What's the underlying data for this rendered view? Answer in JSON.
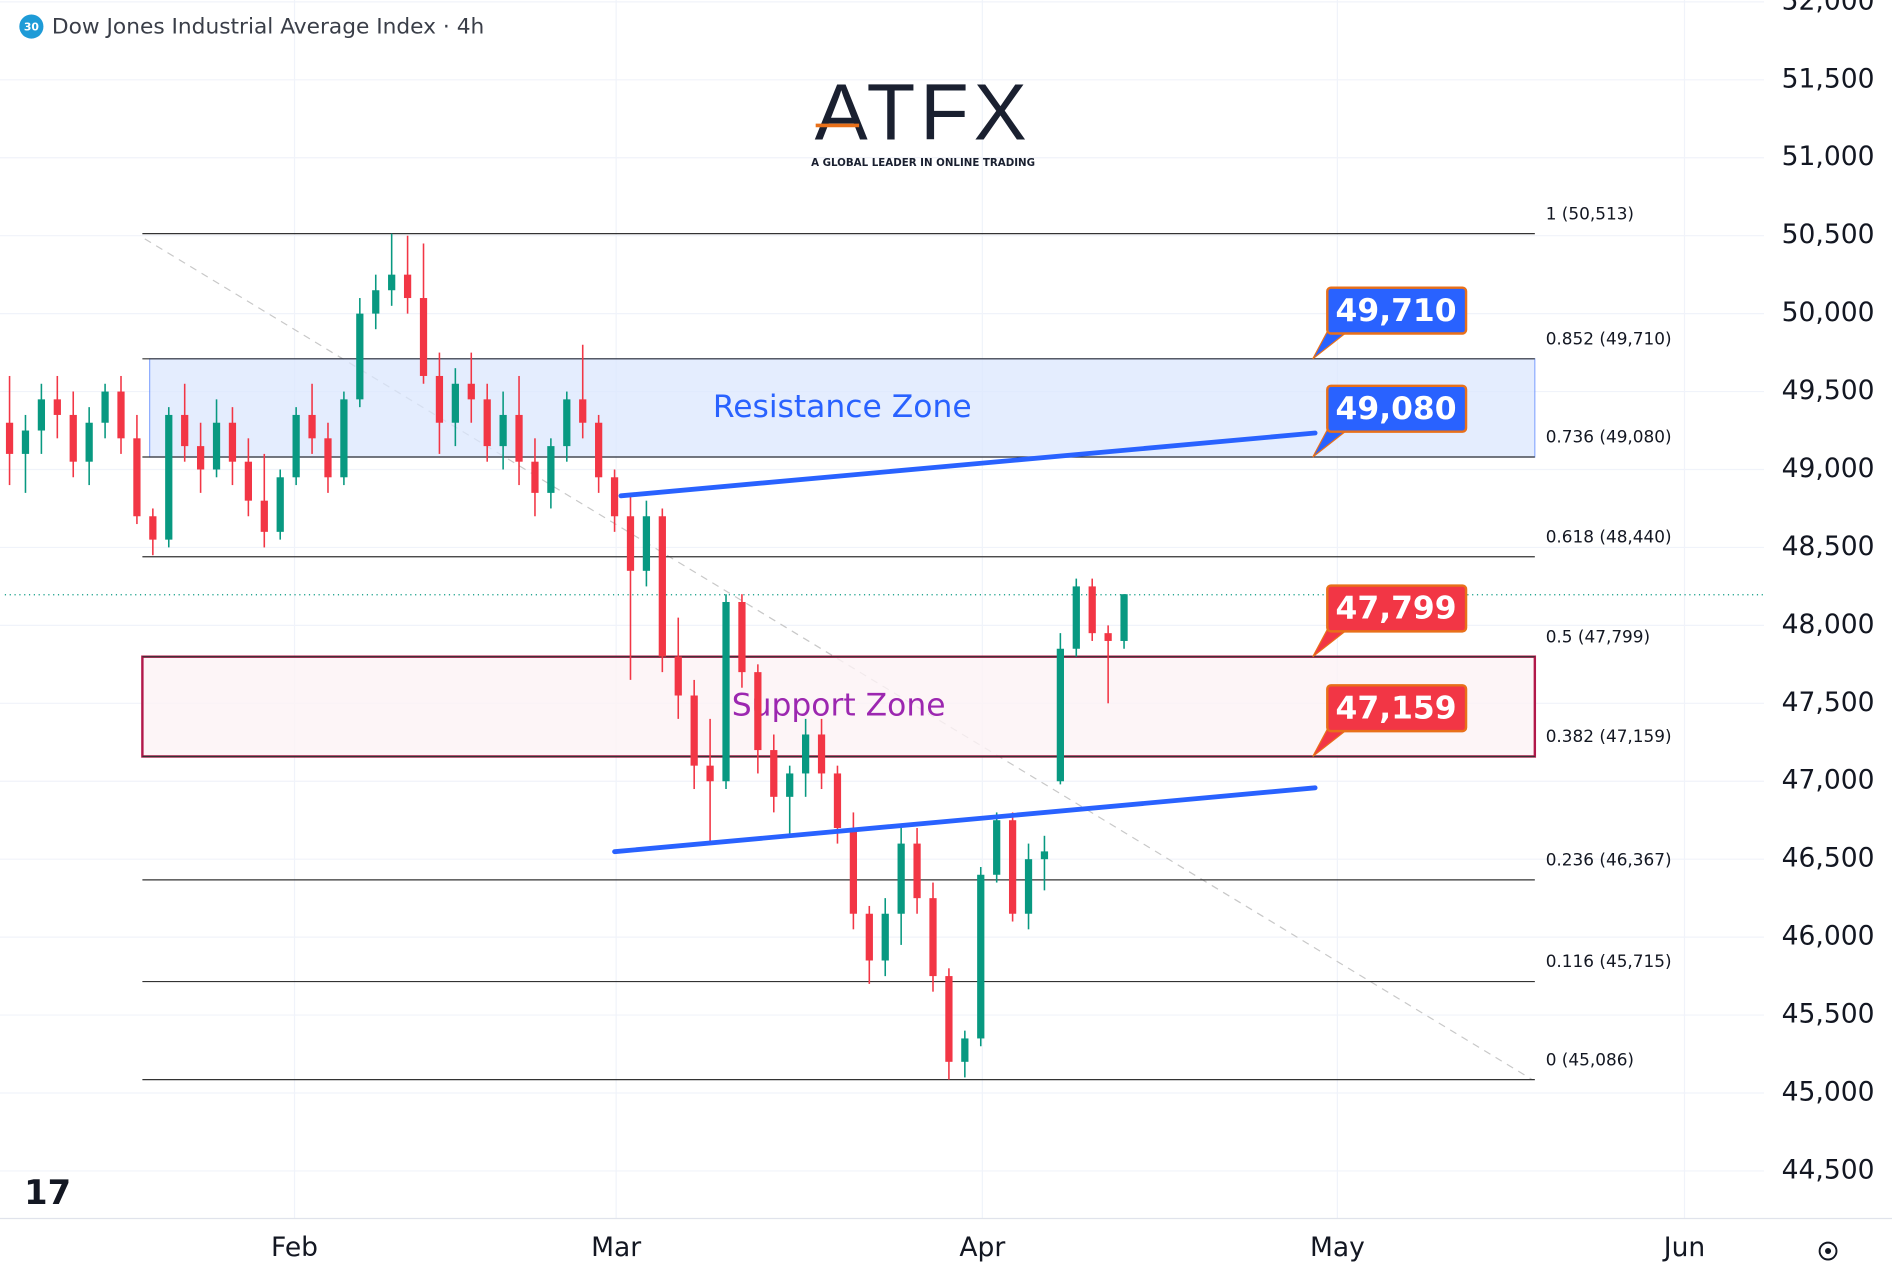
{
  "chart_data": {
    "type": "candlestick",
    "title": "Dow Jones Industrial Average Index · 4h",
    "badge": "30",
    "logo": {
      "name": "ATFX",
      "tagline": "A GLOBAL LEADER IN ONLINE TRADING"
    },
    "x": [
      0,
      1,
      2,
      3,
      4,
      5,
      6,
      7,
      8,
      9,
      10,
      11,
      12,
      13,
      14,
      15,
      16,
      17,
      18,
      19,
      20,
      21,
      22,
      23,
      24,
      25,
      26,
      27,
      28,
      29,
      30,
      31,
      32,
      33,
      34,
      35,
      36,
      37,
      38,
      39,
      40,
      41,
      42,
      43,
      44,
      45,
      46,
      47,
      48,
      49,
      50,
      51,
      52,
      53,
      54,
      55,
      56,
      57,
      58,
      59,
      60,
      61,
      62,
      63,
      64,
      65,
      66,
      67,
      68,
      69,
      70
    ],
    "open": [
      49300,
      49100,
      49250,
      49450,
      49350,
      49050,
      49300,
      49500,
      49200,
      48700,
      48550,
      49350,
      49150,
      49000,
      49300,
      49050,
      48800,
      48600,
      48950,
      49350,
      49200,
      48950,
      49450,
      50000,
      50150,
      50250,
      50100,
      49600,
      49300,
      49550,
      49450,
      49150,
      49350,
      49050,
      48850,
      49150,
      49450,
      49300,
      48950,
      48700,
      48350,
      48700,
      47800,
      47550,
      47100,
      47000,
      48150,
      47700,
      47200,
      46900,
      47050,
      47300,
      47050,
      46700,
      46150,
      45850,
      46150,
      46600,
      46250,
      45750,
      45200,
      45350,
      46400,
      46750,
      46150,
      46500,
      47000,
      47850,
      48250,
      47950,
      47900
    ],
    "high": [
      49600,
      49350,
      49550,
      49600,
      49500,
      49400,
      49550,
      49600,
      49350,
      48750,
      49400,
      49550,
      49300,
      49450,
      49400,
      49200,
      49100,
      49000,
      49400,
      49550,
      49300,
      49500,
      50100,
      50250,
      50513,
      50500,
      50450,
      49750,
      49650,
      49750,
      49550,
      49500,
      49600,
      49200,
      49200,
      49500,
      49800,
      49350,
      49000,
      48850,
      48800,
      48750,
      48050,
      47650,
      47400,
      48200,
      48200,
      47750,
      47300,
      47100,
      47400,
      47400,
      47100,
      46800,
      46200,
      46250,
      46700,
      46700,
      46350,
      45800,
      45400,
      46450,
      46800,
      46800,
      46600,
      46650,
      47950,
      48300,
      48300,
      48000,
      48200
    ],
    "low": [
      48900,
      48850,
      49100,
      49200,
      48950,
      48900,
      49200,
      49100,
      48650,
      48450,
      48500,
      49050,
      48850,
      48950,
      48900,
      48700,
      48500,
      48550,
      48900,
      49100,
      48850,
      48900,
      49400,
      49900,
      50050,
      50000,
      49550,
      49100,
      49150,
      49300,
      49050,
      49000,
      48900,
      48700,
      48750,
      49050,
      49200,
      48850,
      48600,
      47650,
      48250,
      47700,
      47400,
      46950,
      46600,
      46950,
      47600,
      47050,
      46800,
      46650,
      46900,
      46950,
      46600,
      46050,
      45700,
      45750,
      45950,
      46150,
      45650,
      45086,
      45100,
      45300,
      46350,
      46100,
      46050,
      46300,
      46980,
      47800,
      47900,
      47500,
      47850
    ],
    "close": [
      49100,
      49250,
      49450,
      49350,
      49050,
      49300,
      49500,
      49200,
      48700,
      48550,
      49350,
      49150,
      49000,
      49300,
      49050,
      48800,
      48600,
      48950,
      49350,
      49200,
      48950,
      49450,
      50000,
      50150,
      50250,
      50100,
      49600,
      49300,
      49550,
      49450,
      49150,
      49350,
      49050,
      48850,
      49150,
      49450,
      49300,
      48950,
      48700,
      48350,
      48700,
      47800,
      47550,
      47100,
      47000,
      48150,
      47700,
      47200,
      46900,
      47050,
      47300,
      47050,
      46700,
      46150,
      45850,
      46150,
      46600,
      46250,
      45750,
      45200,
      45350,
      46400,
      46750,
      46150,
      46500,
      46550,
      47850,
      48250,
      47950,
      47900,
      48200
    ],
    "up_color": "#089981",
    "down_color": "#f23645",
    "xlim": [
      -0.6,
      110.2
    ],
    "xticks": [
      {
        "value": 17.9,
        "label": "Feb"
      },
      {
        "value": 38.1,
        "label": "Mar"
      },
      {
        "value": 61.1,
        "label": "Apr"
      },
      {
        "value": 83.4,
        "label": "May"
      },
      {
        "value": 105.2,
        "label": "Jun"
      }
    ],
    "ylim": [
      44195,
      52012
    ],
    "yticks": [
      {
        "value": 44500,
        "label": "44,500"
      },
      {
        "value": 45000,
        "label": "45,000"
      },
      {
        "value": 45500,
        "label": "45,500"
      },
      {
        "value": 46000,
        "label": "46,000"
      },
      {
        "value": 46500,
        "label": "46,500"
      },
      {
        "value": 47000,
        "label": "47,000"
      },
      {
        "value": 47500,
        "label": "47,500"
      },
      {
        "value": 48000,
        "label": "48,000"
      },
      {
        "value": 48500,
        "label": "48,500"
      },
      {
        "value": 49000,
        "label": "49,000"
      },
      {
        "value": 49500,
        "label": "49,500"
      },
      {
        "value": 50000,
        "label": "50,000"
      },
      {
        "value": 50500,
        "label": "50,500"
      },
      {
        "value": 51000,
        "label": "51,000"
      },
      {
        "value": 51500,
        "label": "51,500"
      },
      {
        "value": 52000,
        "label": "52,000"
      }
    ],
    "grid": true,
    "fib_levels": [
      {
        "value": 50513,
        "label": "1 (50,513)"
      },
      {
        "value": 49710,
        "label": "0.852 (49,710)"
      },
      {
        "value": 49080,
        "label": "0.736 (49,080)"
      },
      {
        "value": 48440,
        "label": "0.618 (48,440)"
      },
      {
        "value": 47799,
        "label": "0.5 (47,799)"
      },
      {
        "value": 47159,
        "label": "0.382 (47,159)"
      },
      {
        "value": 46367,
        "label": "0.236 (46,367)"
      },
      {
        "value": 45715,
        "label": "0.116 (45,715)"
      },
      {
        "value": 45086,
        "label": "0 (45,086)"
      }
    ],
    "zones": [
      {
        "name": "Resistance Zone",
        "low": 49080,
        "high": 49710,
        "color": "#2962ff"
      },
      {
        "name": "Support Zone",
        "low": 47159,
        "high": 47799,
        "color": "#b2184a"
      }
    ],
    "callouts": [
      {
        "value": 49710,
        "label": "49,710",
        "color": "#2962ff"
      },
      {
        "value": 49080,
        "label": "49,080",
        "color": "#2962ff"
      },
      {
        "value": 47799,
        "label": "47,799",
        "color": "#f23645"
      },
      {
        "value": 47159,
        "label": "47,159",
        "color": "#f23645"
      }
    ],
    "trendlines": [
      {
        "x": [
          38.4,
          82.0
        ],
        "y": [
          48831,
          49234
        ],
        "color": "#2962ff"
      },
      {
        "x": [
          38.0,
          82.0
        ],
        "y": [
          46548,
          46958
        ],
        "color": "#2962ff"
      }
    ]
  }
}
